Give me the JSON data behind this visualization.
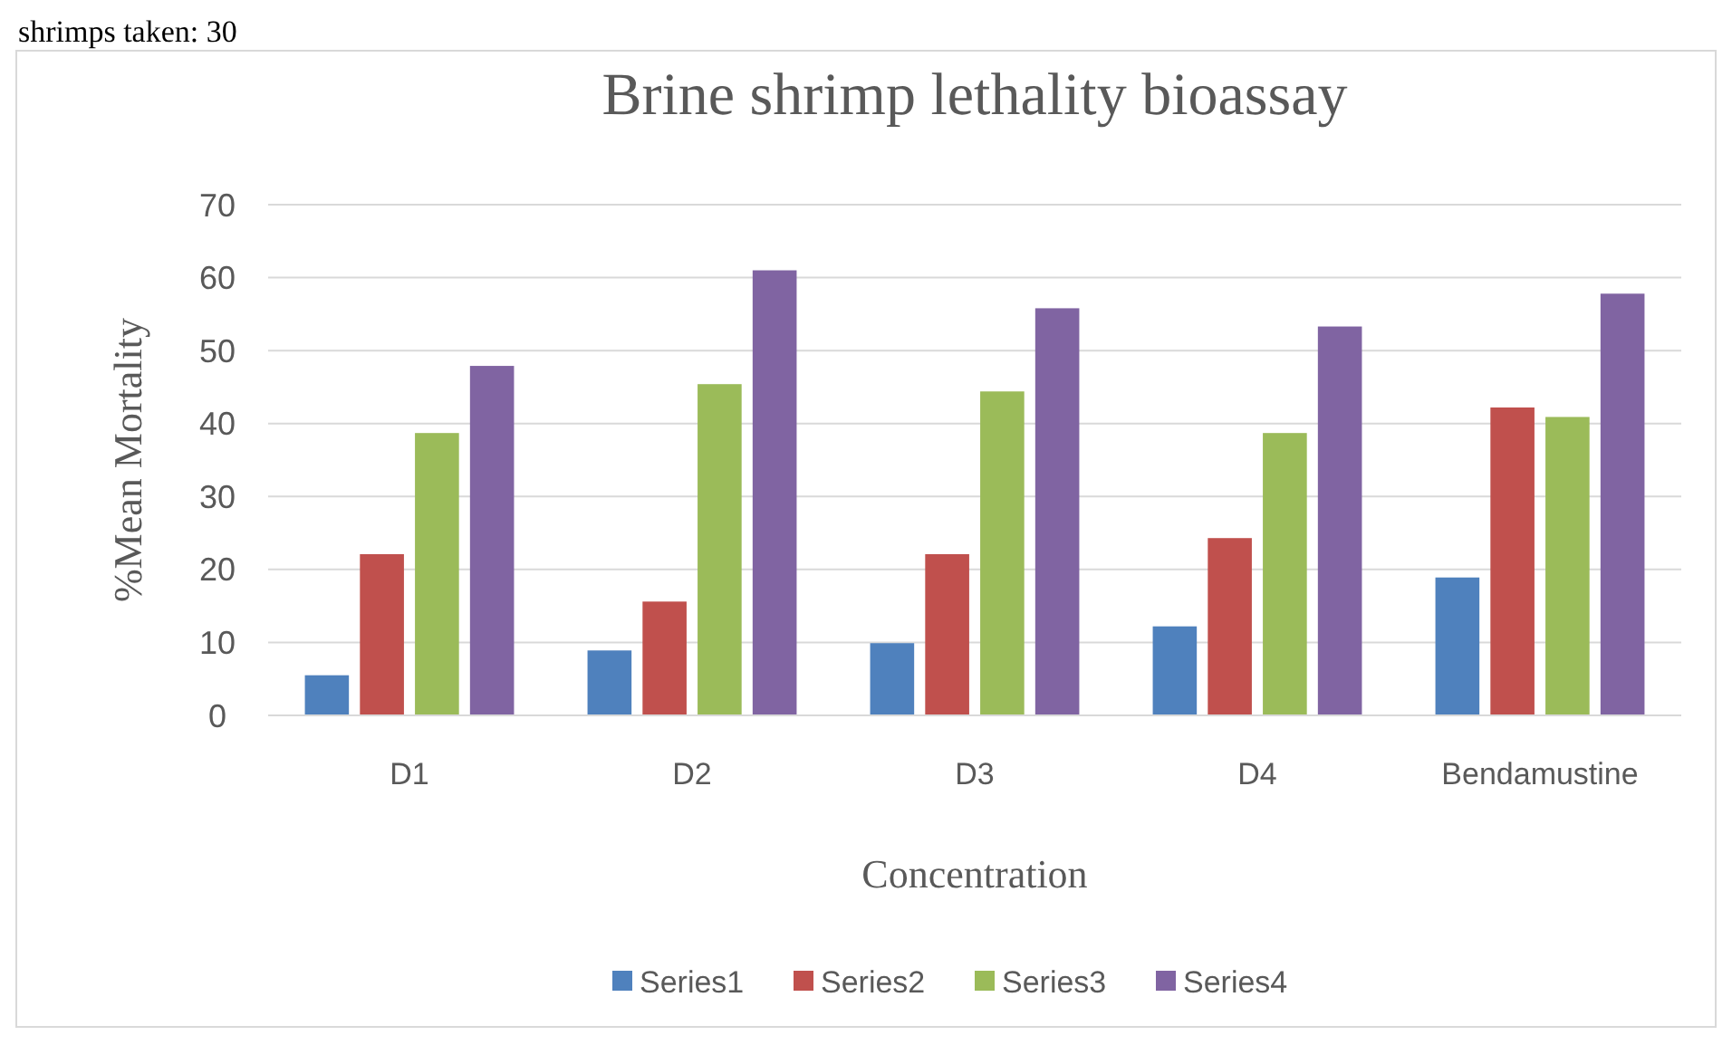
{
  "chart_data": {
    "type": "bar",
    "title": "Brine shrimp lethality bioassay",
    "xlabel": "Concentration",
    "ylabel": "%Mean Mortality",
    "annotations": [
      "shrimps taken: 30"
    ],
    "categories": [
      "D1",
      "D2",
      "D3",
      "D4",
      "Bendamustine"
    ],
    "series": [
      {
        "name": "Series1",
        "color": "#4f81bd",
        "values": [
          5.5,
          8.9,
          9.9,
          12.2,
          18.9
        ]
      },
      {
        "name": "Series2",
        "color": "#c0504d",
        "values": [
          22.1,
          15.6,
          22.1,
          24.3,
          42.2
        ]
      },
      {
        "name": "Series3",
        "color": "#9bbb59",
        "values": [
          38.7,
          45.4,
          44.4,
          38.7,
          40.9
        ]
      },
      {
        "name": "Series4",
        "color": "#8064a2",
        "values": [
          47.9,
          61.0,
          55.8,
          53.3,
          57.8
        ]
      }
    ],
    "ylim": [
      0,
      70
    ],
    "yticks": [
      0,
      10,
      20,
      30,
      40,
      50,
      60,
      70
    ],
    "grid": "y",
    "legend": "bottom"
  }
}
